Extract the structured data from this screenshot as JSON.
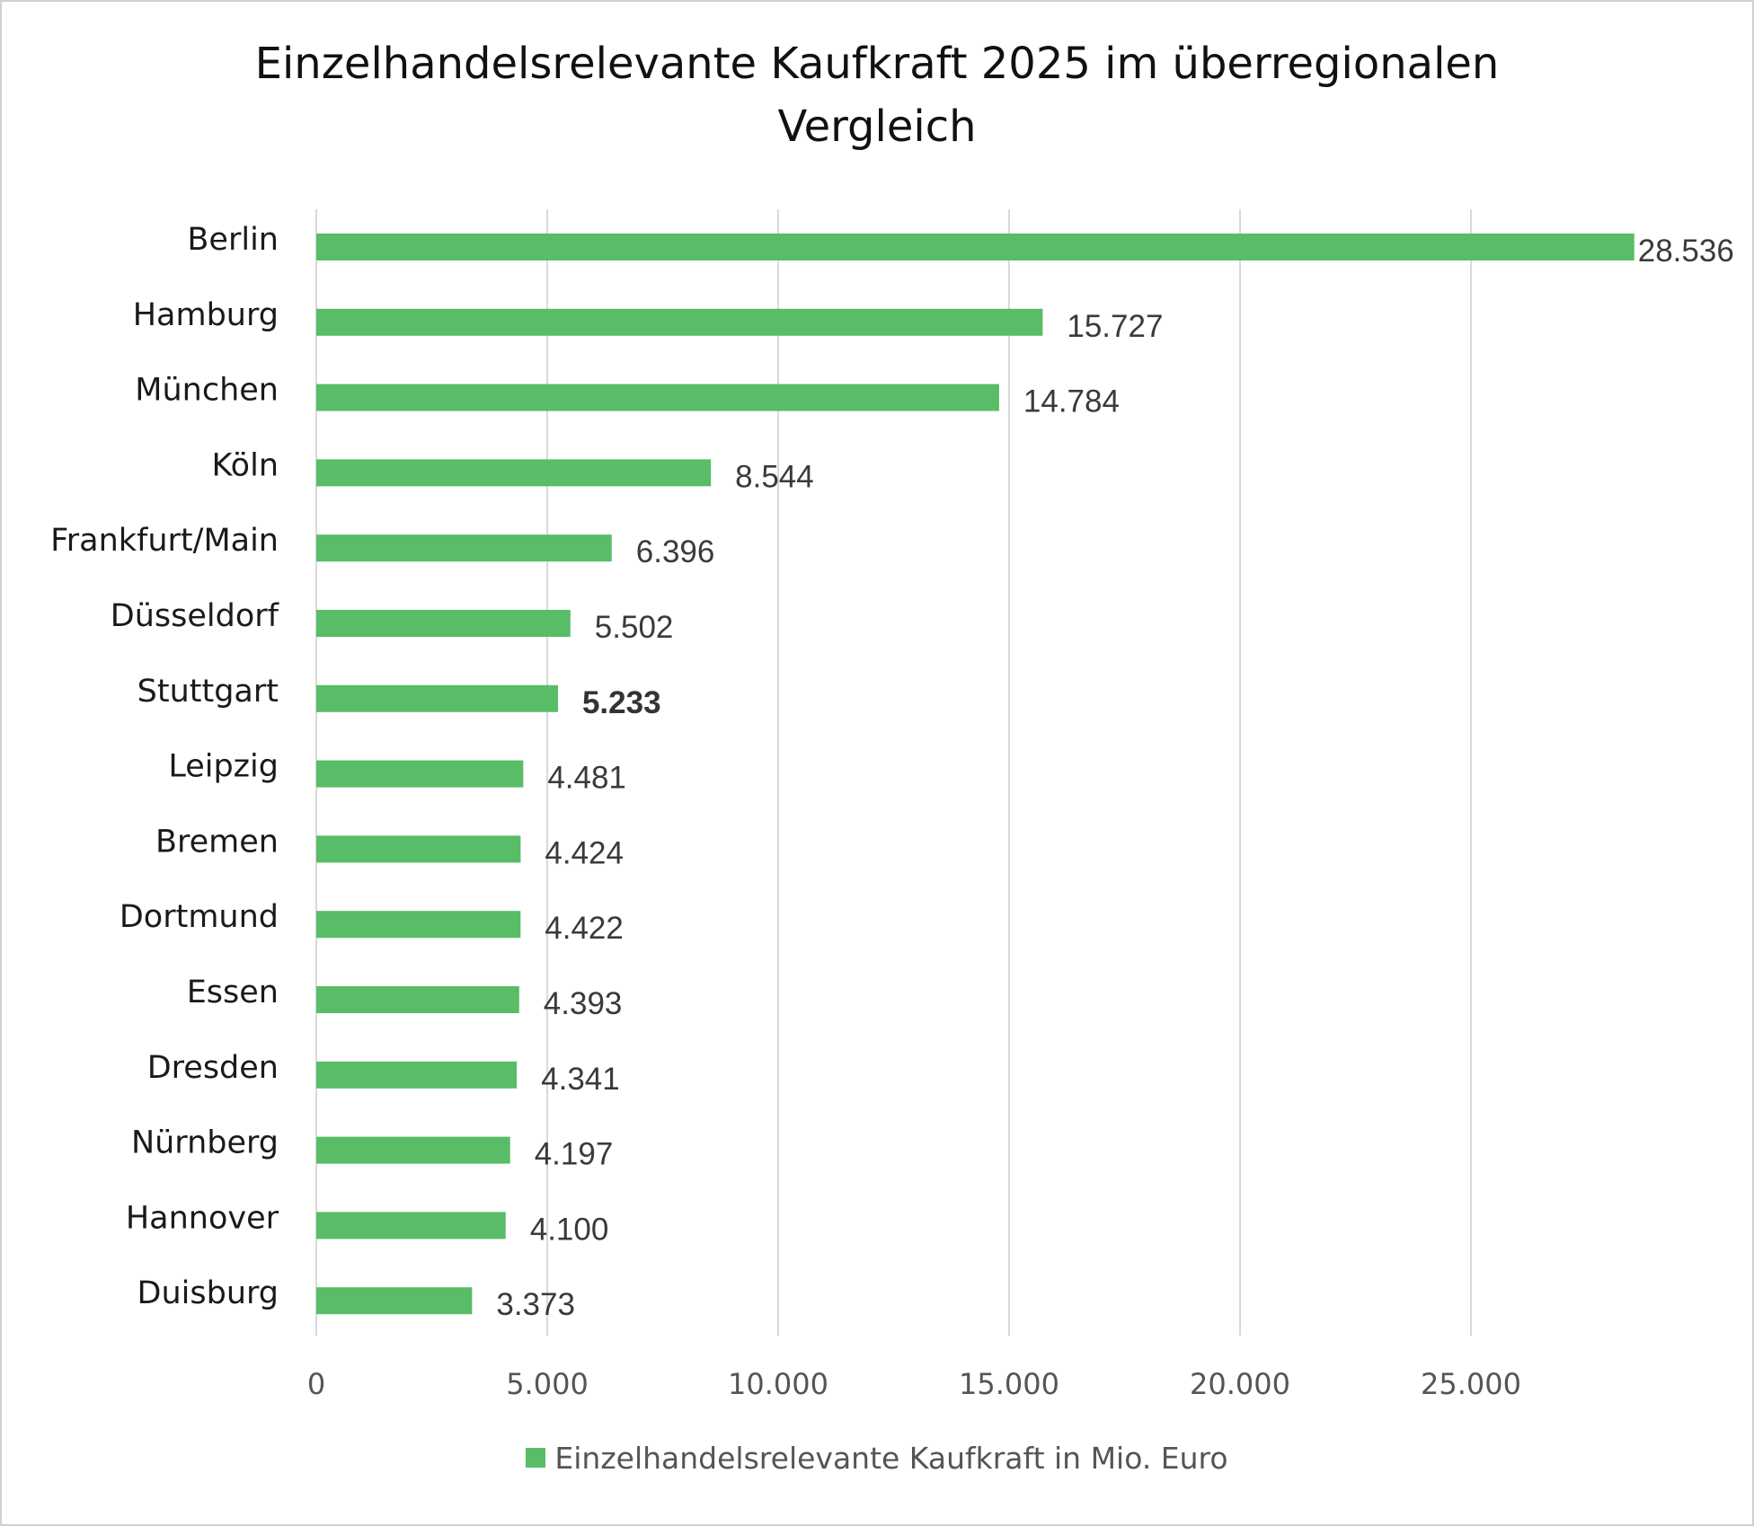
{
  "chart_data": {
    "type": "bar",
    "orientation": "horizontal",
    "title": "Einzelhandelsrelevante Kaufkraft 2025 im überregionalen Vergleich",
    "categories": [
      "Berlin",
      "Hamburg",
      "München",
      "Köln",
      "Frankfurt/Main",
      "Düsseldorf",
      "Stuttgart",
      "Leipzig",
      "Bremen",
      "Dortmund",
      "Essen",
      "Dresden",
      "Nürnberg",
      "Hannover",
      "Duisburg"
    ],
    "series": [
      {
        "name": "Einzelhandelsrelevante Kaufkraft in Mio. Euro",
        "values": [
          28536,
          15727,
          14784,
          8544,
          6396,
          5502,
          5233,
          4481,
          4424,
          4422,
          4393,
          4341,
          4197,
          4100,
          3373
        ],
        "labels": [
          "28.536",
          "15.727",
          "14.784",
          "8.544",
          "6.396",
          "5.502",
          "5.233",
          "4.481",
          "4.424",
          "4.422",
          "4.393",
          "4.341",
          "4.197",
          "4.100",
          "3.373"
        ],
        "color": "#58bd66"
      }
    ],
    "highlighted_category": "Stuttgart",
    "xlim": [
      0,
      30000
    ],
    "xticks": [
      0,
      5000,
      10000,
      15000,
      20000,
      25000
    ],
    "xtick_labels": [
      "0",
      "5.000",
      "10.000",
      "15.000",
      "20.000",
      "25.000"
    ],
    "grid": true,
    "legend_position": "bottom",
    "gridline_color": "#d9d9d9",
    "frame_color": "#d0d0d0"
  }
}
